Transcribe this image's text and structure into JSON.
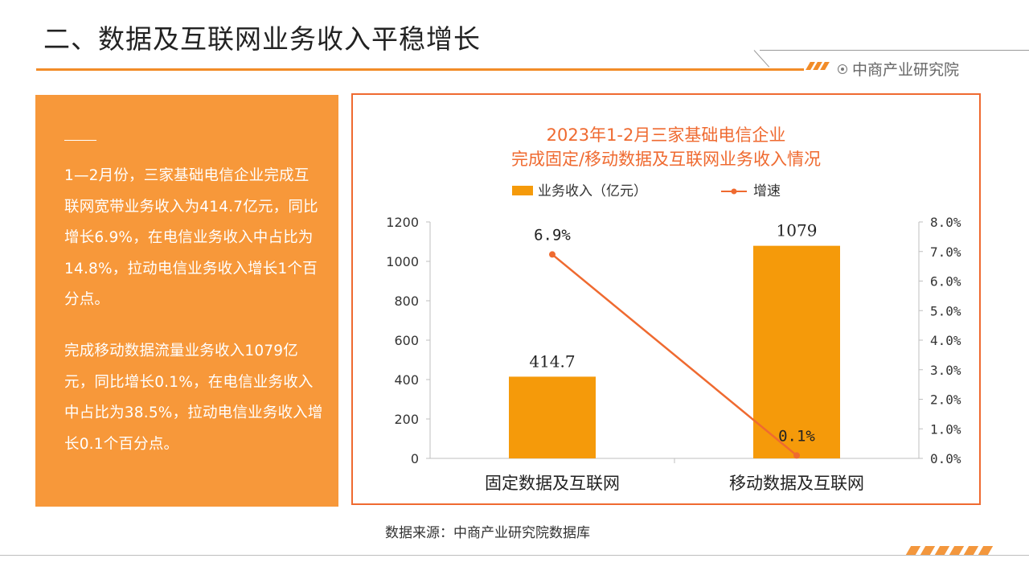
{
  "header": {
    "title": "二、数据及互联网业务收入平稳增长",
    "brand": "中商产业研究院"
  },
  "left_panel": {
    "paragraph_1": "1—2月份，三家基础电信企业完成互联网宽带业务收入为414.7亿元，同比增长6.9%，在电信业务收入中占比为14.8%，拉动电信业务收入增长1个百分点。",
    "paragraph_2": "完成移动数据流量业务收入1079亿元，同比增长0.1%，在电信业务收入中占比为38.5%，拉动电信业务收入增长0.1个百分点。"
  },
  "chart_data": {
    "type": "bar",
    "title_line_1": "2023年1-2月三家基础电信企业",
    "title_line_2": "完成固定/移动数据及互联网业务收入情况",
    "categories": [
      "固定数据及互联网",
      "移动数据及互联网"
    ],
    "series": [
      {
        "name": "业务收入（亿元）",
        "type": "bar",
        "axis": "left",
        "values": [
          414.7,
          1079
        ],
        "labels": [
          "414.7",
          "1079"
        ],
        "color": "#f59a0a"
      },
      {
        "name": "增速",
        "type": "line",
        "axis": "right",
        "values": [
          6.9,
          0.1
        ],
        "labels": [
          "6.9%",
          "0.1%"
        ],
        "color": "#ef6a30"
      }
    ],
    "y_left": {
      "min": 0,
      "max": 1200,
      "step": 200,
      "tick_labels": [
        "0",
        "200",
        "400",
        "600",
        "800",
        "1000",
        "1200"
      ]
    },
    "y_right": {
      "min": 0,
      "max": 8,
      "step": 1,
      "tick_labels": [
        "0.0%",
        "1.0%",
        "2.0%",
        "3.0%",
        "4.0%",
        "5.0%",
        "6.0%",
        "7.0%",
        "8.0%"
      ]
    },
    "grid": false,
    "legend_position": "top"
  },
  "footer": {
    "source": "数据来源：中商产业研究院数据库"
  }
}
